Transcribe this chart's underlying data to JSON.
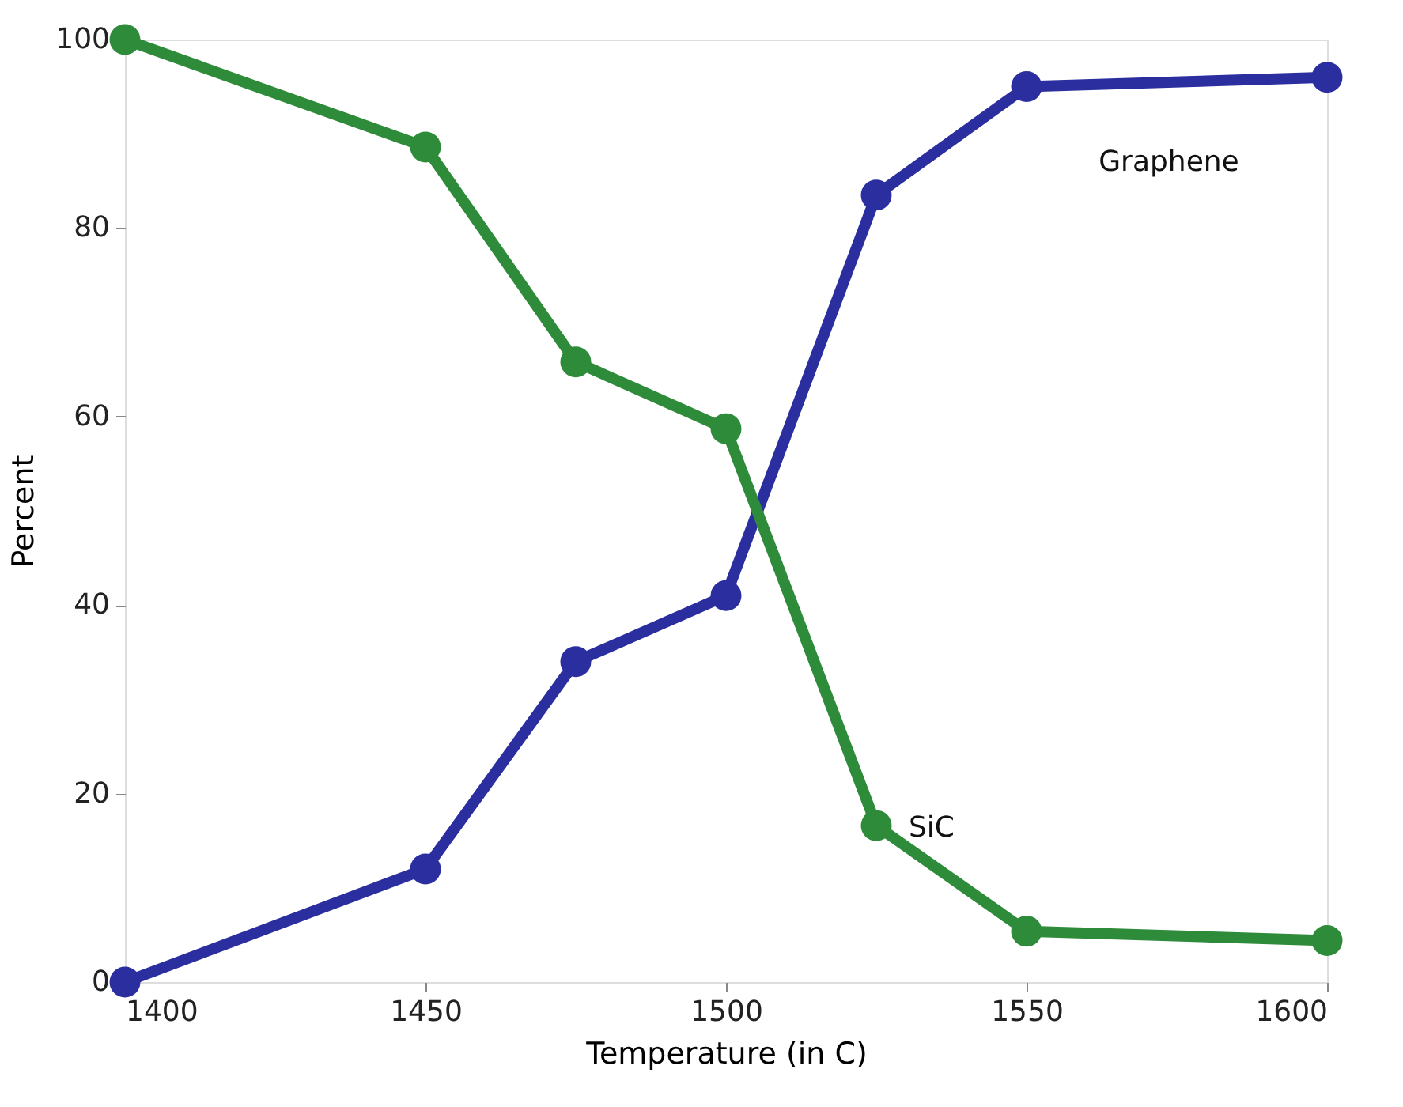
{
  "chart_data": {
    "type": "line",
    "xlabel": "Temperature (in C)",
    "ylabel": "Percent",
    "x": [
      1400,
      1450,
      1475,
      1500,
      1525,
      1550,
      1600
    ],
    "series": [
      {
        "name": "Graphene",
        "color": "#2b2e9e",
        "values": [
          0,
          12,
          34,
          41,
          83.5,
          95,
          96
        ]
      },
      {
        "name": "SiC",
        "color": "#2e8b3a",
        "values": [
          100,
          88.6,
          65.8,
          58.7,
          16.6,
          5.4,
          4.4
        ]
      }
    ],
    "xlim": [
      1400,
      1600
    ],
    "xticks": [
      1400,
      1450,
      1500,
      1550,
      1600
    ],
    "ylim": [
      0,
      100
    ],
    "yticks": [
      0,
      20,
      40,
      60,
      80,
      100
    ],
    "grid": false,
    "legend": false,
    "marker": "circle",
    "line_style": "solid"
  }
}
